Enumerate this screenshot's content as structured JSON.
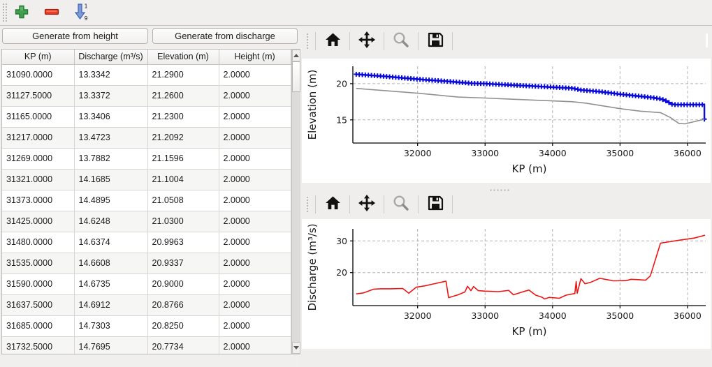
{
  "main_toolbar": {
    "icons": [
      {
        "name": "add-row",
        "glyph": "plus",
        "color": "#3ea04a"
      },
      {
        "name": "remove-row",
        "glyph": "minus",
        "color": "#ee3b25"
      },
      {
        "name": "sort-ascending",
        "glyph": "arrow-down-1-9",
        "color": "#5a7fd0",
        "top_char": "1",
        "bottom_char": "9"
      }
    ]
  },
  "left_panel": {
    "buttons": [
      {
        "label": "Generate from height"
      },
      {
        "label": "Generate from discharge"
      }
    ],
    "table": {
      "columns": [
        "KP (m)",
        "Discharge (m³/s)",
        "Elevation (m)",
        "Height (m)"
      ],
      "rows": [
        [
          "31090.0000",
          "13.3342",
          "21.2900",
          "2.0000"
        ],
        [
          "31127.5000",
          "13.3372",
          "21.2600",
          "2.0000"
        ],
        [
          "31165.0000",
          "13.3406",
          "21.2300",
          "2.0000"
        ],
        [
          "31217.0000",
          "13.4723",
          "21.2092",
          "2.0000"
        ],
        [
          "31269.0000",
          "13.7882",
          "21.1596",
          "2.0000"
        ],
        [
          "31321.0000",
          "14.1685",
          "21.1004",
          "2.0000"
        ],
        [
          "31373.0000",
          "14.4895",
          "21.0508",
          "2.0000"
        ],
        [
          "31425.0000",
          "14.6248",
          "21.0300",
          "2.0000"
        ],
        [
          "31480.0000",
          "14.6374",
          "20.9963",
          "2.0000"
        ],
        [
          "31535.0000",
          "14.6608",
          "20.9337",
          "2.0000"
        ],
        [
          "31590.0000",
          "14.6735",
          "20.9000",
          "2.0000"
        ],
        [
          "31637.5000",
          "14.6912",
          "20.8766",
          "2.0000"
        ],
        [
          "31685.0000",
          "14.7303",
          "20.8250",
          "2.0000"
        ],
        [
          "31732.5000",
          "14.7695",
          "20.7734",
          "2.0000"
        ]
      ]
    }
  },
  "chart_toolbar": {
    "icons": [
      "home",
      "pan",
      "zoom",
      "save"
    ]
  },
  "colors": {
    "elevation_line": "#0b0bd8",
    "bed_line": "#909090",
    "discharge_line": "#ee1414",
    "grid": "#b3b3b3",
    "spine": "#000000"
  },
  "chart_data": [
    {
      "type": "line",
      "title": "",
      "xlabel": "KP (m)",
      "ylabel": "Elevation (m)",
      "xlim": [
        31040,
        36270
      ],
      "ylim": [
        11.8,
        22.4
      ],
      "xticks": [
        32000,
        33000,
        34000,
        35000,
        36000
      ],
      "yticks": [
        15,
        20
      ],
      "grid": true,
      "legend": "none",
      "series": [
        {
          "name": "water-elevation",
          "color": "#0b0bd8",
          "marker": "+",
          "points": [
            [
              31090,
              21.3
            ],
            [
              31500,
              21.02
            ],
            [
              32000,
              20.62
            ],
            [
              32500,
              20.28
            ],
            [
              32800,
              20.05
            ],
            [
              33000,
              20.0
            ],
            [
              33500,
              19.76
            ],
            [
              34000,
              19.52
            ],
            [
              34300,
              19.36
            ],
            [
              34420,
              19.12
            ],
            [
              34700,
              18.9
            ],
            [
              35000,
              18.55
            ],
            [
              35300,
              18.26
            ],
            [
              35500,
              18.05
            ],
            [
              35620,
              17.86
            ],
            [
              35700,
              17.55
            ],
            [
              35760,
              17.18
            ],
            [
              35820,
              17.1
            ],
            [
              36230,
              17.1
            ],
            [
              36250,
              17.15
            ],
            [
              36250,
              15.1
            ]
          ]
        },
        {
          "name": "bed-elevation",
          "color": "#909090",
          "marker": "none",
          "points": [
            [
              31090,
              19.35
            ],
            [
              32000,
              18.68
            ],
            [
              32600,
              18.15
            ],
            [
              33000,
              18.02
            ],
            [
              33400,
              17.85
            ],
            [
              34000,
              17.62
            ],
            [
              34300,
              17.5
            ],
            [
              34500,
              17.3
            ],
            [
              35000,
              16.55
            ],
            [
              35300,
              16.2
            ],
            [
              35600,
              16.0
            ],
            [
              35750,
              15.3
            ],
            [
              35870,
              14.52
            ],
            [
              35960,
              14.45
            ],
            [
              36100,
              14.75
            ],
            [
              36250,
              15.1
            ]
          ]
        }
      ]
    },
    {
      "type": "line",
      "title": "",
      "xlabel": "KP (m)",
      "ylabel": "Discharge (m³/s)",
      "xlim": [
        31040,
        36270
      ],
      "ylim": [
        9.6,
        33.8
      ],
      "xticks": [
        32000,
        33000,
        34000,
        35000,
        36000
      ],
      "yticks": [
        20,
        30
      ],
      "grid": true,
      "legend": "none",
      "series": [
        {
          "name": "discharge",
          "color": "#ee1414",
          "marker": "none",
          "points": [
            [
              31090,
              13.3
            ],
            [
              31200,
              13.6
            ],
            [
              31350,
              14.8
            ],
            [
              31450,
              14.9
            ],
            [
              31600,
              14.9
            ],
            [
              31780,
              15.0
            ],
            [
              31870,
              13.5
            ],
            [
              31980,
              15.4
            ],
            [
              32100,
              15.8
            ],
            [
              32250,
              16.5
            ],
            [
              32420,
              17.3
            ],
            [
              32460,
              12.1
            ],
            [
              32600,
              13.0
            ],
            [
              32700,
              13.9
            ],
            [
              32740,
              15.7
            ],
            [
              32790,
              14.3
            ],
            [
              32830,
              15.6
            ],
            [
              32900,
              14.3
            ],
            [
              33000,
              14.15
            ],
            [
              33200,
              14.0
            ],
            [
              33350,
              14.4
            ],
            [
              33420,
              13.0
            ],
            [
              33550,
              13.9
            ],
            [
              33650,
              14.5
            ],
            [
              33750,
              12.9
            ],
            [
              33850,
              12.2
            ],
            [
              33880,
              11.7
            ],
            [
              33950,
              12.2
            ],
            [
              34100,
              11.9
            ],
            [
              34200,
              12.9
            ],
            [
              34330,
              13.4
            ],
            [
              34350,
              17.2
            ],
            [
              34365,
              13.5
            ],
            [
              34420,
              18.1
            ],
            [
              34480,
              16.5
            ],
            [
              34560,
              16.9
            ],
            [
              34700,
              18.2
            ],
            [
              34800,
              17.8
            ],
            [
              34900,
              17.4
            ],
            [
              35100,
              17.5
            ],
            [
              35160,
              17.9
            ],
            [
              35250,
              17.8
            ],
            [
              35380,
              17.6
            ],
            [
              35450,
              19.0
            ],
            [
              35600,
              29.3
            ],
            [
              35900,
              30.3
            ],
            [
              36100,
              30.9
            ],
            [
              36260,
              31.8
            ]
          ]
        }
      ]
    }
  ]
}
